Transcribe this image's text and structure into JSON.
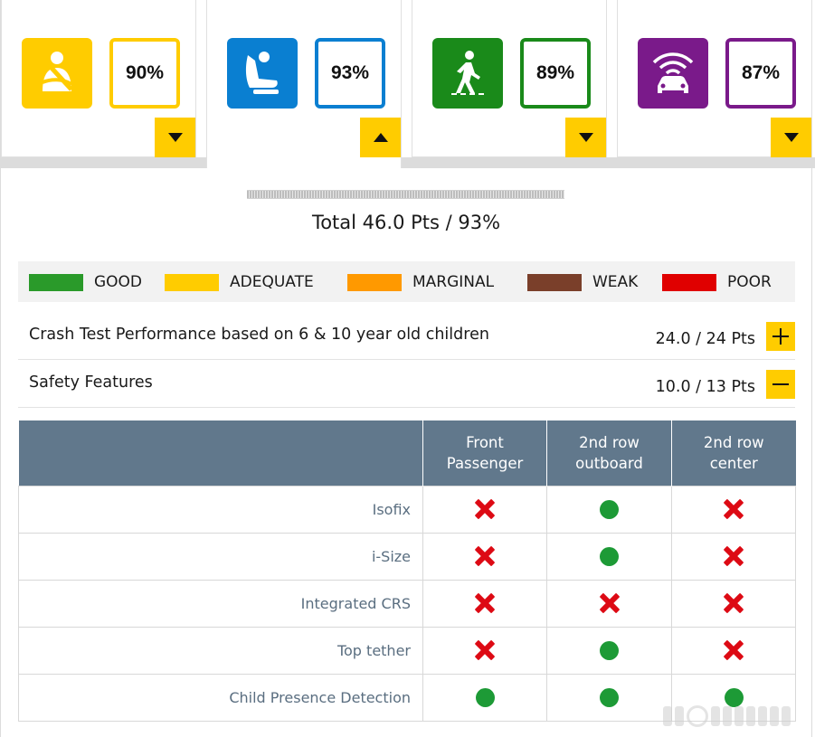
{
  "categories": [
    {
      "key": "adult-occupant",
      "icon": "seatbelt-icon",
      "percent": "90%",
      "color": "#ffcc00",
      "expanded": false
    },
    {
      "key": "child-occupant",
      "icon": "child-seat-icon",
      "percent": "93%",
      "color": "#0a7fd1",
      "expanded": true
    },
    {
      "key": "vulnerable-road-users",
      "icon": "pedestrian-icon",
      "percent": "89%",
      "color": "#1a8a1a",
      "expanded": false
    },
    {
      "key": "safety-assist",
      "icon": "car-sensor-icon",
      "percent": "87%",
      "color": "#7a1a8a",
      "expanded": false
    }
  ],
  "summary": {
    "total": "Total 46.0 Pts / 93%"
  },
  "legend": [
    {
      "label": "GOOD",
      "color": "#2a9a2a"
    },
    {
      "label": "ADEQUATE",
      "color": "#ffcc00"
    },
    {
      "label": "MARGINAL",
      "color": "#ff9900"
    },
    {
      "label": "WEAK",
      "color": "#7a3f2a"
    },
    {
      "label": "POOR",
      "color": "#e00000"
    }
  ],
  "sections": {
    "crash": {
      "title": "Crash Test Performance based on 6 & 10 year old children",
      "points": "24.0 / 24 Pts"
    },
    "safety": {
      "title": "Safety Features",
      "points": "10.0 / 13 Pts"
    }
  },
  "table": {
    "columns": [
      "Front\nPassenger",
      "2nd row\noutboard",
      "2nd row\ncenter"
    ],
    "rows": [
      {
        "feature": "Isofix",
        "values": [
          "no",
          "yes",
          "no"
        ]
      },
      {
        "feature": "i-Size",
        "values": [
          "no",
          "yes",
          "no"
        ]
      },
      {
        "feature": "Integrated CRS",
        "values": [
          "no",
          "no",
          "no"
        ]
      },
      {
        "feature": "Top tether",
        "values": [
          "no",
          "yes",
          "no"
        ]
      },
      {
        "feature": "Child Presence Detection",
        "values": [
          "yes",
          "yes",
          "yes"
        ]
      }
    ]
  }
}
